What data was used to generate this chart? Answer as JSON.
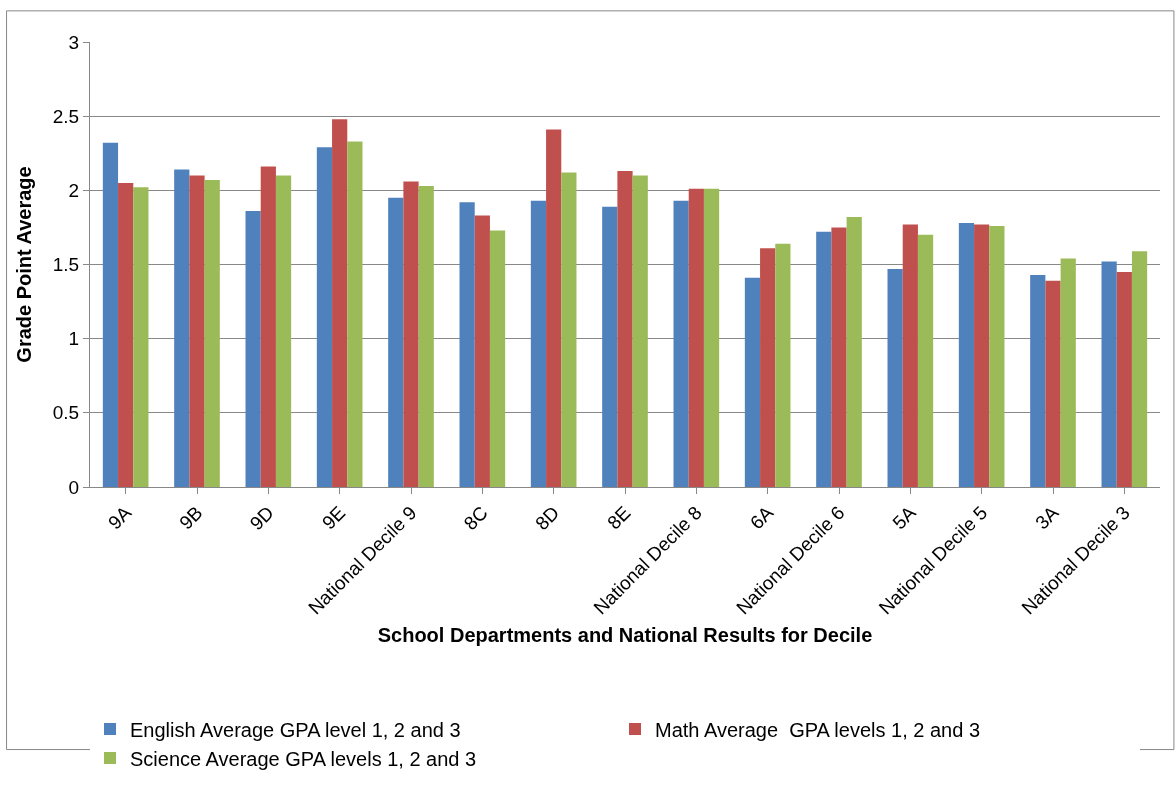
{
  "chart_data": {
    "type": "bar",
    "xlabel": "School Departments and National Results for Decile",
    "ylabel": "Grade Point Average",
    "categories": [
      "9A",
      "9B",
      "9D",
      "9E",
      "National Decile 9",
      "8C",
      "8D",
      "8E",
      "National Decile 8",
      "6A",
      "National Decile 6",
      "5A",
      "National Decile 5",
      "3A",
      "National Decile 3"
    ],
    "series": [
      {
        "name": "English Average GPA level 1, 2 and 3",
        "color": "#4f81bd",
        "values": [
          2.32,
          2.14,
          1.86,
          2.29,
          1.95,
          1.92,
          1.93,
          1.89,
          1.93,
          1.41,
          1.72,
          1.47,
          1.78,
          1.43,
          1.52
        ]
      },
      {
        "name": "Math Average  GPA levels 1, 2 and 3",
        "color": "#c0504d",
        "values": [
          2.05,
          2.1,
          2.16,
          2.48,
          2.06,
          1.83,
          2.41,
          2.13,
          2.01,
          1.61,
          1.75,
          1.77,
          1.77,
          1.39,
          1.45
        ]
      },
      {
        "name": "Science Average GPA levels 1, 2 and 3",
        "color": "#9bbb59",
        "values": [
          2.02,
          2.07,
          2.1,
          2.33,
          2.03,
          1.73,
          2.12,
          2.1,
          2.01,
          1.64,
          1.82,
          1.7,
          1.76,
          1.54,
          1.59
        ]
      }
    ],
    "ylim": [
      0,
      3
    ],
    "yticks": [
      0,
      0.5,
      1,
      1.5,
      2,
      2.5,
      3
    ],
    "grid": "y",
    "legend": "bottom"
  }
}
